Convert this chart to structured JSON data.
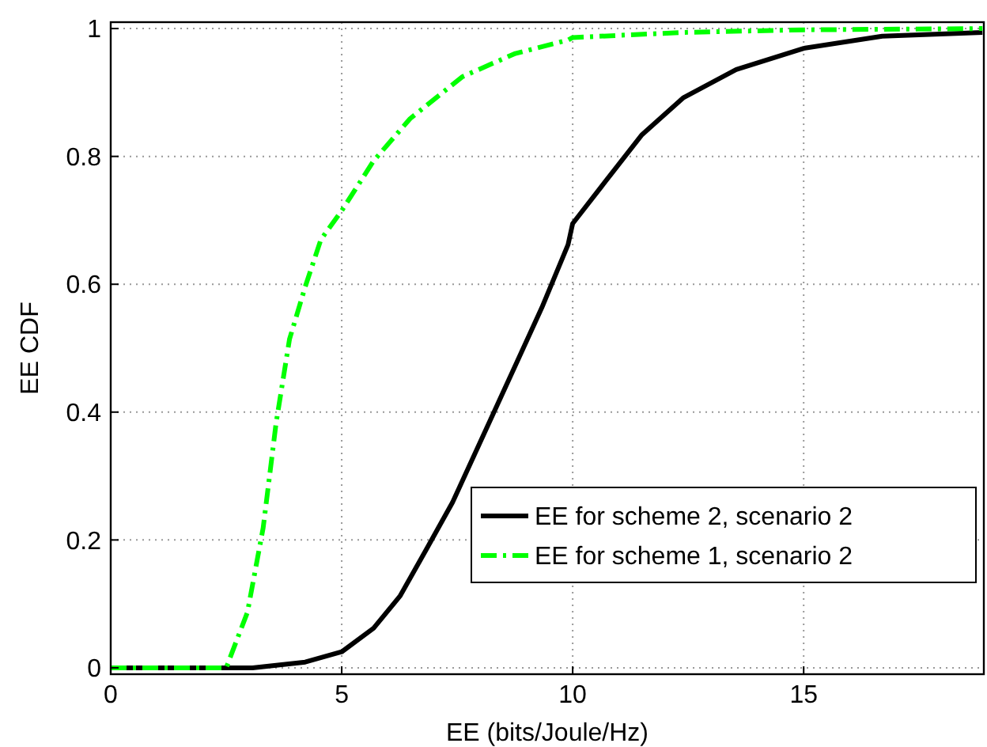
{
  "chart_data": {
    "type": "line",
    "xlabel": "EE (bits/Joule/Hz)",
    "ylabel": "EE CDF",
    "xlim": [
      0,
      18.9
    ],
    "ylim": [
      -0.01,
      1.01
    ],
    "xticks": [
      0,
      5,
      10,
      15
    ],
    "yticks": [
      0,
      0.2,
      0.4,
      0.6,
      0.8,
      1
    ],
    "grid": true,
    "legend": "bottom right",
    "marker": "none",
    "series": [
      {
        "name": "EE for scheme 2, scenario 2",
        "color": "#000000",
        "line_style": "solid",
        "x": [
          0,
          3.07,
          4.21,
          5.0,
          5.69,
          6.26,
          6.83,
          7.4,
          8.08,
          8.76,
          9.33,
          9.9,
          10.0,
          10.7,
          11.5,
          12.4,
          13.54,
          15.0,
          16.7,
          18.87
        ],
        "values": [
          0,
          0,
          0.009,
          0.025,
          0.062,
          0.112,
          0.185,
          0.259,
          0.366,
          0.473,
          0.563,
          0.662,
          0.695,
          0.76,
          0.834,
          0.892,
          0.936,
          0.969,
          0.988,
          0.994
        ]
      },
      {
        "name": "EE for scheme 1, scenario 2",
        "color": "#00ff00",
        "line_style": "dashed",
        "x": [
          0,
          2.5,
          2.96,
          3.3,
          3.58,
          3.87,
          4.21,
          4.55,
          5.0,
          5.69,
          6.48,
          7.62,
          8.76,
          9.9,
          10.0,
          12.4,
          15.0,
          18.87
        ],
        "values": [
          0,
          0,
          0.087,
          0.219,
          0.383,
          0.514,
          0.596,
          0.67,
          0.715,
          0.793,
          0.859,
          0.925,
          0.961,
          0.982,
          0.986,
          0.994,
          0.998,
          1.0
        ]
      }
    ]
  }
}
